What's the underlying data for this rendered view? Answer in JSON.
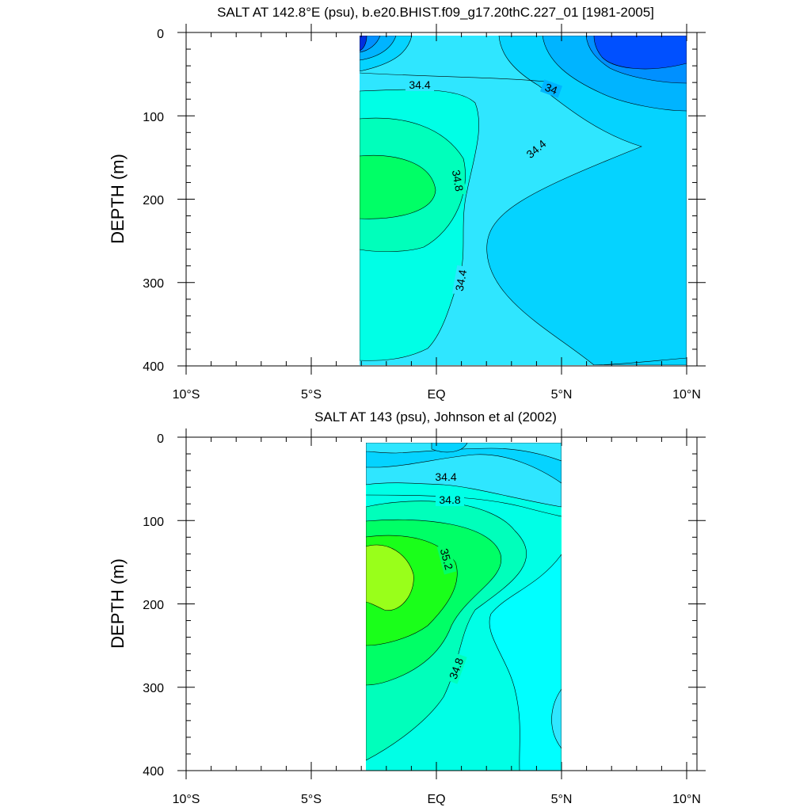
{
  "chart_data": [
    {
      "type": "contour",
      "title": "SALT AT 142.8°E (psu), b.e20.BHIST.f09_g17.20thC.227_01 [1981-2005]",
      "ylabel": "DEPTH (m)",
      "xlim": [
        -10,
        10
      ],
      "ylim": [
        400,
        0
      ],
      "x_ticks": [
        -10,
        -5,
        0,
        5,
        10
      ],
      "x_tick_labels": [
        "10°S",
        "5°S",
        "EQ",
        "5°N",
        "10°N"
      ],
      "y_ticks": [
        0,
        100,
        200,
        300,
        400
      ],
      "y_tick_labels": [
        "0",
        "100",
        "200",
        "300",
        "400"
      ],
      "data_x_range": [
        -3,
        10
      ],
      "data_y_range": [
        5,
        400
      ],
      "contour_interval": 0.2,
      "contour_labels": [
        {
          "text": "34.4",
          "x": -1.3,
          "y": 63
        },
        {
          "text": "34",
          "x": 4.6,
          "y": 67
        },
        {
          "text": "34.4",
          "x": 4.0,
          "y": 135
        },
        {
          "text": "34.8",
          "x": 0.9,
          "y": 175
        },
        {
          "text": "34.4",
          "x": 1.0,
          "y": 292
        }
      ]
    },
    {
      "type": "contour",
      "title": "SALT AT 143 (psu), Johnson et al (2002)",
      "ylabel": "DEPTH (m)",
      "xlim": [
        -10,
        10
      ],
      "ylim": [
        400,
        0
      ],
      "x_ticks": [
        -10,
        -5,
        0,
        5,
        10
      ],
      "x_tick_labels": [
        "10°S",
        "5°S",
        "EQ",
        "5°N",
        "10°N"
      ],
      "y_ticks": [
        0,
        100,
        200,
        300,
        400
      ],
      "y_tick_labels": [
        "0",
        "100",
        "200",
        "300",
        "400"
      ],
      "data_x_range": [
        -2.8,
        5
      ],
      "data_y_range": [
        5,
        400
      ],
      "contour_interval": 0.2,
      "contour_labels": [
        {
          "text": "34.4",
          "x": 0.4,
          "y": 47
        },
        {
          "text": "34.8",
          "x": 0.5,
          "y": 76
        },
        {
          "text": "35.2",
          "x": 0.4,
          "y": 145
        },
        {
          "text": "34.8",
          "x": 0.8,
          "y": 270
        }
      ]
    }
  ]
}
